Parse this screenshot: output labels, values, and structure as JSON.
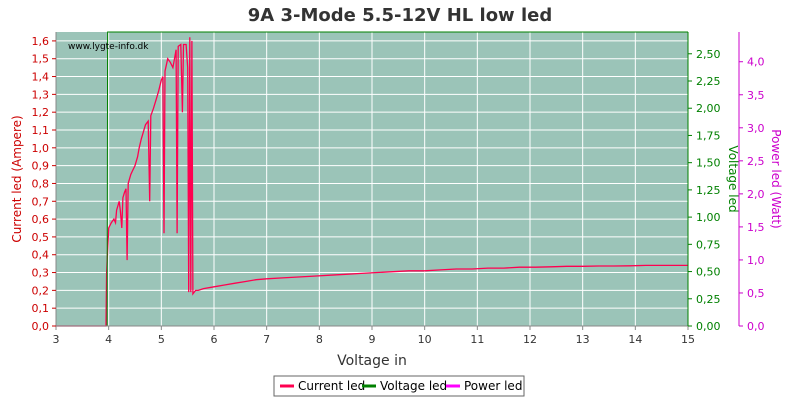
{
  "chart_data": {
    "type": "line",
    "title": "9A 3-Mode 5.5-12V HL low led",
    "watermark": "www.lygte-info.dk",
    "xlabel": "Voltage in",
    "ylabel_left": "Current led (Ampere)",
    "ylabel_right1": "Voltage led",
    "ylabel_right2": "Power led (Watt)",
    "xlim": [
      3,
      15
    ],
    "ylim_left": [
      0,
      1.65
    ],
    "ylim_right1": [
      0,
      2.7
    ],
    "ylim_right2": [
      0,
      4.45
    ],
    "x_ticks": [
      "3",
      "4",
      "5",
      "6",
      "7",
      "8",
      "9",
      "10",
      "11",
      "12",
      "13",
      "14",
      "15"
    ],
    "y_left_ticks": [
      "0,0",
      "0,1",
      "0,2",
      "0,3",
      "0,4",
      "0,5",
      "0,6",
      "0,7",
      "0,8",
      "0,9",
      "1,0",
      "1,1",
      "1,2",
      "1,3",
      "1,4",
      "1,5",
      "1,6"
    ],
    "y_right1_ticks": [
      "0,00",
      "0,25",
      "0,50",
      "0,75",
      "1,00",
      "1,25",
      "1,50",
      "1,75",
      "2,00",
      "2,25",
      "2,50"
    ],
    "y_right2_ticks": [
      "0,0",
      "0,5",
      "1,0",
      "1,5",
      "2,0",
      "2,5",
      "3,0",
      "3,5",
      "4,0"
    ],
    "grid": true,
    "legend_position": "bottom",
    "colors": {
      "plot_bg": "#9bc4b8",
      "grid": "#ffffff",
      "current": "#ff0050",
      "voltage": "#008000",
      "power": "#ff00ff",
      "left_axis": "#cc0000",
      "right1_axis": "#008000",
      "right2_axis": "#cc00cc"
    },
    "series": [
      {
        "name": "Current led",
        "axis": "left",
        "points": [
          [
            3,
            0
          ],
          [
            3.95,
            0
          ],
          [
            3.96,
            0.3
          ],
          [
            4.0,
            0.55
          ],
          [
            4.05,
            0.58
          ],
          [
            4.1,
            0.6
          ],
          [
            4.13,
            0.58
          ],
          [
            4.15,
            0.65
          ],
          [
            4.2,
            0.7
          ],
          [
            4.22,
            0.65
          ],
          [
            4.25,
            0.55
          ],
          [
            4.27,
            0.72
          ],
          [
            4.3,
            0.75
          ],
          [
            4.33,
            0.77
          ],
          [
            4.35,
            0.37
          ],
          [
            4.37,
            0.8
          ],
          [
            4.42,
            0.85
          ],
          [
            4.45,
            0.87
          ],
          [
            4.5,
            0.9
          ],
          [
            4.55,
            0.95
          ],
          [
            4.58,
            1.0
          ],
          [
            4.62,
            1.05
          ],
          [
            4.65,
            1.08
          ],
          [
            4.7,
            1.13
          ],
          [
            4.75,
            1.15
          ],
          [
            4.78,
            0.7
          ],
          [
            4.8,
            1.18
          ],
          [
            4.85,
            1.22
          ],
          [
            4.9,
            1.27
          ],
          [
            4.95,
            1.32
          ],
          [
            5.0,
            1.38
          ],
          [
            5.03,
            1.4
          ],
          [
            5.05,
            0.52
          ],
          [
            5.07,
            1.43
          ],
          [
            5.12,
            1.5
          ],
          [
            5.17,
            1.48
          ],
          [
            5.22,
            1.45
          ],
          [
            5.28,
            1.55
          ],
          [
            5.3,
            0.52
          ],
          [
            5.32,
            1.57
          ],
          [
            5.37,
            1.58
          ],
          [
            5.4,
            1.2
          ],
          [
            5.42,
            1.58
          ],
          [
            5.47,
            1.58
          ],
          [
            5.5,
            1.45
          ],
          [
            5.52,
            0.19
          ],
          [
            5.54,
            1.62
          ],
          [
            5.56,
            0.19
          ],
          [
            5.58,
            1.6
          ],
          [
            5.6,
            0.18
          ],
          [
            5.65,
            0.2
          ],
          [
            5.7,
            0.2
          ],
          [
            5.8,
            0.21
          ],
          [
            6.0,
            0.22
          ],
          [
            6.2,
            0.23
          ],
          [
            6.4,
            0.24
          ],
          [
            6.6,
            0.25
          ],
          [
            6.8,
            0.26
          ],
          [
            7.0,
            0.265
          ],
          [
            7.3,
            0.27
          ],
          [
            7.6,
            0.275
          ],
          [
            7.9,
            0.28
          ],
          [
            8.2,
            0.285
          ],
          [
            8.5,
            0.29
          ],
          [
            8.8,
            0.295
          ],
          [
            9.1,
            0.3
          ],
          [
            9.4,
            0.305
          ],
          [
            9.7,
            0.31
          ],
          [
            10.0,
            0.31
          ],
          [
            10.3,
            0.315
          ],
          [
            10.6,
            0.32
          ],
          [
            10.9,
            0.32
          ],
          [
            11.2,
            0.325
          ],
          [
            11.5,
            0.325
          ],
          [
            11.8,
            0.33
          ],
          [
            12.1,
            0.33
          ],
          [
            12.4,
            0.332
          ],
          [
            12.7,
            0.335
          ],
          [
            13.0,
            0.335
          ],
          [
            13.3,
            0.337
          ],
          [
            13.6,
            0.337
          ],
          [
            13.9,
            0.338
          ],
          [
            14.2,
            0.34
          ],
          [
            14.5,
            0.34
          ],
          [
            15.0,
            0.34
          ]
        ]
      },
      {
        "name": "Voltage led",
        "axis": "right1",
        "points": [
          [
            3,
            0
          ],
          [
            3.97,
            0
          ],
          [
            3.98,
            2.7
          ],
          [
            15,
            2.7
          ]
        ]
      },
      {
        "name": "Power led",
        "axis": "right2",
        "points": []
      }
    ]
  }
}
